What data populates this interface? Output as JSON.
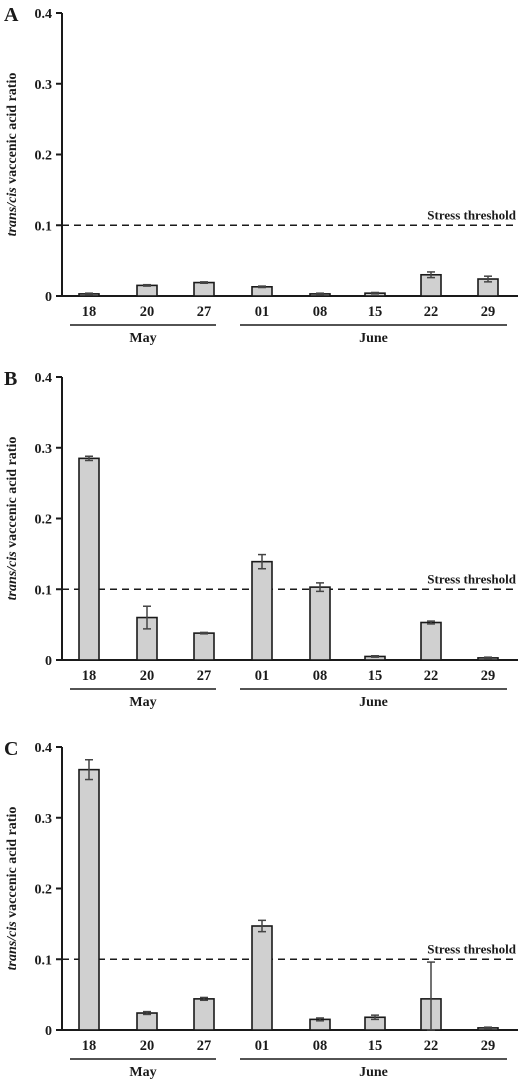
{
  "chart_data": [
    {
      "type": "bar",
      "panel": "A",
      "ylabel": "trans/cis vaccenic acid ratio",
      "ylabel_parts": [
        "trans/cis",
        " vaccenic acid ratio"
      ],
      "ylim": [
        0,
        0.4
      ],
      "yticks": [
        "0",
        "0.1",
        "0.2",
        "0.3",
        "0.4"
      ],
      "categories": [
        "18",
        "20",
        "27",
        "01",
        "08",
        "15",
        "22",
        "29"
      ],
      "groups": [
        {
          "label": "May",
          "categories": [
            "18",
            "20",
            "27"
          ]
        },
        {
          "label": "June",
          "categories": [
            "01",
            "08",
            "15",
            "22",
            "29"
          ]
        }
      ],
      "values": [
        0.003,
        0.015,
        0.019,
        0.013,
        0.003,
        0.004,
        0.03,
        0.024
      ],
      "errors": [
        0.001,
        0.001,
        0.001,
        0.001,
        0.001,
        0.001,
        0.004,
        0.004
      ],
      "threshold": {
        "value": 0.1,
        "label": "Stress threshold"
      },
      "bar_color": "#d0d0d0"
    },
    {
      "type": "bar",
      "panel": "B",
      "ylabel": "trans/cis vaccenic acid ratio",
      "ylabel_parts": [
        "trans/cis",
        " vaccenic acid ratio"
      ],
      "ylim": [
        0,
        0.4
      ],
      "yticks": [
        "0",
        "0.1",
        "0.2",
        "0.3",
        "0.4"
      ],
      "categories": [
        "18",
        "20",
        "27",
        "01",
        "08",
        "15",
        "22",
        "29"
      ],
      "groups": [
        {
          "label": "May",
          "categories": [
            "18",
            "20",
            "27"
          ]
        },
        {
          "label": "June",
          "categories": [
            "01",
            "08",
            "15",
            "22",
            "29"
          ]
        }
      ],
      "values": [
        0.285,
        0.06,
        0.038,
        0.139,
        0.103,
        0.005,
        0.053,
        0.003
      ],
      "errors": [
        0.003,
        0.016,
        0.001,
        0.01,
        0.006,
        0.001,
        0.002,
        0.001
      ],
      "threshold": {
        "value": 0.1,
        "label": "Stress threshold"
      },
      "bar_color": "#d0d0d0"
    },
    {
      "type": "bar",
      "panel": "C",
      "ylabel": "trans/cis vaccenic acid ratio",
      "ylabel_parts": [
        "trans/cis",
        " vaccenic acid ratio"
      ],
      "ylim": [
        0,
        0.4
      ],
      "yticks": [
        "0",
        "0.1",
        "0.2",
        "0.3",
        "0.4"
      ],
      "categories": [
        "18",
        "20",
        "27",
        "01",
        "08",
        "15",
        "22",
        "29"
      ],
      "groups": [
        {
          "label": "May",
          "categories": [
            "18",
            "20",
            "27"
          ]
        },
        {
          "label": "June",
          "categories": [
            "01",
            "08",
            "15",
            "22",
            "29"
          ]
        }
      ],
      "values": [
        0.368,
        0.024,
        0.044,
        0.147,
        0.015,
        0.018,
        0.044,
        0.003
      ],
      "errors": [
        0.014,
        0.002,
        0.002,
        0.008,
        0.002,
        0.003,
        0.052,
        0.001
      ],
      "threshold": {
        "value": 0.1,
        "label": "Stress threshold"
      },
      "bar_color": "#d0d0d0"
    }
  ]
}
